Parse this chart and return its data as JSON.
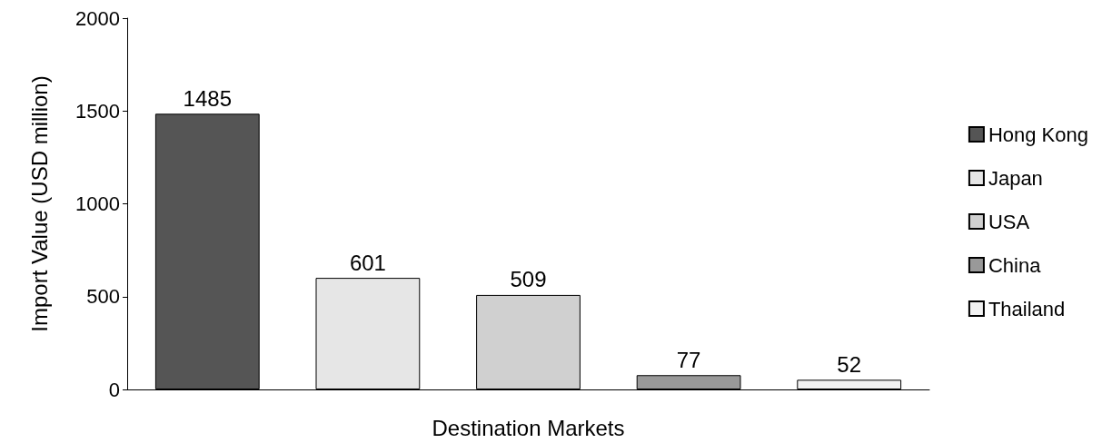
{
  "chart_data": {
    "type": "bar",
    "xlabel": "Destination Markets",
    "ylabel": "Import Value (USD million)",
    "categories": [
      null,
      null,
      null,
      null,
      null
    ],
    "series": [
      {
        "name": "Hong Kong",
        "color": "#555555",
        "values": [
          1485,
          null,
          null,
          null,
          null
        ]
      },
      {
        "name": "Japan",
        "color": "#e6e6e6",
        "values": [
          null,
          601,
          null,
          null,
          null
        ]
      },
      {
        "name": "USA",
        "color": "#d0d0d0",
        "values": [
          null,
          null,
          509,
          null,
          null
        ]
      },
      {
        "name": "China",
        "color": "#999999",
        "values": [
          null,
          null,
          null,
          77,
          null
        ]
      },
      {
        "name": "Thailand",
        "color": "#f2f2f2",
        "values": [
          null,
          null,
          null,
          null,
          52
        ]
      }
    ],
    "ylim": [
      0,
      2000
    ],
    "yticks": [
      0,
      500,
      1000,
      1500,
      2000
    ],
    "grid": false,
    "legend": "right",
    "data_labels": true
  }
}
